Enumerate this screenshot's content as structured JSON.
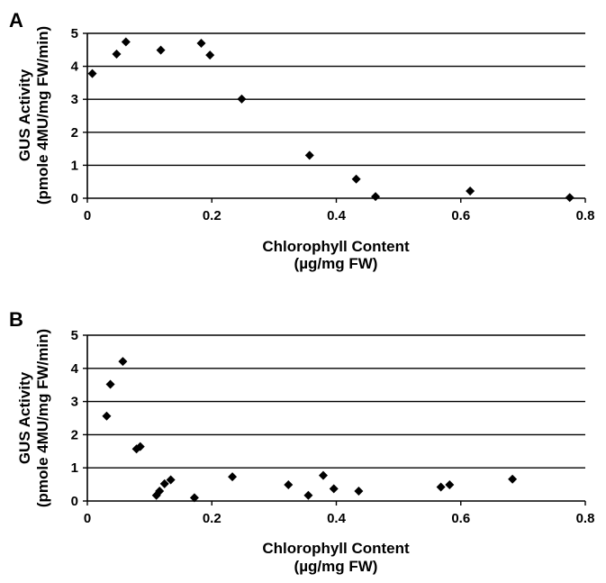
{
  "chart_data": [
    {
      "type": "scatter",
      "panel_label": "A",
      "xlabel": "Chlorophyll Content",
      "xlabel_unit": "(µg/mg FW)",
      "ylabel": "GUS Activity",
      "ylabel_unit": "(pmole 4MU/mg FW/min)",
      "xlim": [
        0,
        0.8
      ],
      "ylim": [
        0,
        5
      ],
      "xticks": [
        0,
        0.2,
        0.4,
        0.6,
        0.8
      ],
      "xtick_labels": [
        "0",
        "0.2",
        "0.4",
        "0.6",
        "0.8"
      ],
      "yticks": [
        0,
        1,
        2,
        3,
        4,
        5
      ],
      "ytick_labels": [
        "0",
        "1",
        "2",
        "3",
        "4",
        "5"
      ],
      "grid": "horizontal",
      "marker": "diamond",
      "color": "#000000",
      "points": [
        {
          "x": 0.008,
          "y": 3.78
        },
        {
          "x": 0.047,
          "y": 4.37
        },
        {
          "x": 0.062,
          "y": 4.74
        },
        {
          "x": 0.118,
          "y": 4.49
        },
        {
          "x": 0.183,
          "y": 4.7
        },
        {
          "x": 0.197,
          "y": 4.34
        },
        {
          "x": 0.248,
          "y": 3.01
        },
        {
          "x": 0.357,
          "y": 1.3
        },
        {
          "x": 0.432,
          "y": 0.58
        },
        {
          "x": 0.463,
          "y": 0.05
        },
        {
          "x": 0.615,
          "y": 0.22
        },
        {
          "x": 0.775,
          "y": 0.02
        }
      ]
    },
    {
      "type": "scatter",
      "panel_label": "B",
      "xlabel": "Chlorophyll Content",
      "xlabel_unit": "(µg/mg FW)",
      "ylabel": "GUS Activity",
      "ylabel_unit": "(pmole 4MU/mg FW/min)",
      "xlim": [
        0,
        0.8
      ],
      "ylim": [
        0,
        5
      ],
      "xticks": [
        0,
        0.2,
        0.4,
        0.6,
        0.8
      ],
      "xtick_labels": [
        "0",
        "0.2",
        "0.4",
        "0.6",
        "0.8"
      ],
      "yticks": [
        0,
        1,
        2,
        3,
        4,
        5
      ],
      "ytick_labels": [
        "0",
        "1",
        "2",
        "3",
        "4",
        "5"
      ],
      "grid": "horizontal",
      "marker": "diamond",
      "color": "#000000",
      "points": [
        {
          "x": 0.031,
          "y": 2.56
        },
        {
          "x": 0.037,
          "y": 3.52
        },
        {
          "x": 0.057,
          "y": 4.21
        },
        {
          "x": 0.079,
          "y": 1.57
        },
        {
          "x": 0.085,
          "y": 1.64
        },
        {
          "x": 0.111,
          "y": 0.17
        },
        {
          "x": 0.116,
          "y": 0.3
        },
        {
          "x": 0.124,
          "y": 0.52
        },
        {
          "x": 0.134,
          "y": 0.64
        },
        {
          "x": 0.172,
          "y": 0.1
        },
        {
          "x": 0.233,
          "y": 0.73
        },
        {
          "x": 0.323,
          "y": 0.49
        },
        {
          "x": 0.355,
          "y": 0.17
        },
        {
          "x": 0.379,
          "y": 0.77
        },
        {
          "x": 0.396,
          "y": 0.37
        },
        {
          "x": 0.436,
          "y": 0.3
        },
        {
          "x": 0.568,
          "y": 0.42
        },
        {
          "x": 0.582,
          "y": 0.49
        },
        {
          "x": 0.683,
          "y": 0.66
        }
      ]
    }
  ]
}
